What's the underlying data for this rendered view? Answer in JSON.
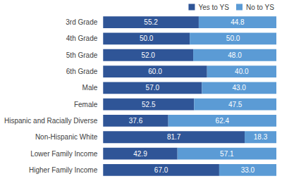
{
  "chart_data": {
    "type": "bar",
    "orientation": "horizontal",
    "stacked": true,
    "data_labels": true,
    "tick_labels": "y",
    "legend": "top-right",
    "grid": false,
    "categories": [
      "3rd Grade",
      "4th Grade",
      "5th Grade",
      "6th Grade",
      "Male",
      "Female",
      "Hispanic and Racially Diverse",
      "Non-Hispanic White",
      "Lower Family Income",
      "Higher Family Income"
    ],
    "xlim": [
      0,
      100
    ],
    "series": [
      {
        "name": "Yes to YS",
        "color": "#2f5597",
        "values": [
          55.2,
          50.0,
          52.0,
          60.0,
          57.0,
          52.5,
          37.6,
          81.7,
          42.9,
          67.0
        ],
        "value_labels": [
          "55.2",
          "50.0",
          "52.0",
          "60.0",
          "57.0",
          "52.5",
          "37.6",
          "81.7",
          "42.9",
          "67.0"
        ]
      },
      {
        "name": "No to YS",
        "color": "#5b9bd5",
        "values": [
          44.8,
          50.0,
          48.0,
          40.0,
          43.0,
          47.5,
          62.4,
          18.3,
          57.1,
          33.0
        ],
        "value_labels": [
          "44.8",
          "50.0",
          "48.0",
          "40.0",
          "43.0",
          "47.5",
          "62.4",
          "18.3",
          "57.1",
          "33.0"
        ]
      }
    ]
  }
}
